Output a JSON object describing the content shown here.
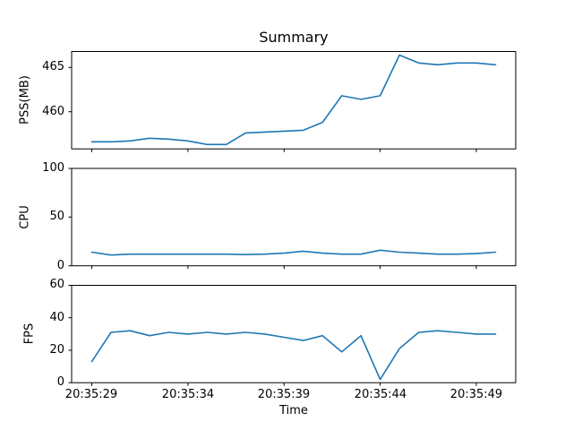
{
  "figure": {
    "title": "Summary",
    "xlabel": "Time",
    "xtick_labels": [
      "20:35:29",
      "20:35:34",
      "20:35:39",
      "20:35:44",
      "20:35:49"
    ],
    "background": "#ffffff",
    "line_color": "#1f77b4",
    "axes_color": "#000000"
  },
  "chart_data": [
    {
      "type": "line",
      "ylabel": "PSS(MB)",
      "ylim": [
        455.8,
        466.8
      ],
      "yticks": [
        460,
        465
      ],
      "grid": false,
      "legend": null,
      "line_color": "#1f77b4",
      "x_times": [
        "20:35:29",
        "20:35:30",
        "20:35:31",
        "20:35:32",
        "20:35:33",
        "20:35:34",
        "20:35:35",
        "20:35:36",
        "20:35:37",
        "20:35:38",
        "20:35:39",
        "20:35:40",
        "20:35:41",
        "20:35:42",
        "20:35:43",
        "20:35:44",
        "20:35:45",
        "20:35:46",
        "20:35:47",
        "20:35:48",
        "20:35:49",
        "20:35:50"
      ],
      "values": [
        456.6,
        456.6,
        456.7,
        457.0,
        456.9,
        456.7,
        456.3,
        456.3,
        457.6,
        457.7,
        457.8,
        457.9,
        458.8,
        461.8,
        461.4,
        461.8,
        466.4,
        465.5,
        465.3,
        465.5,
        465.5,
        465.3
      ]
    },
    {
      "type": "line",
      "ylabel": "CPU",
      "ylim": [
        0,
        100
      ],
      "yticks": [
        0,
        50,
        100
      ],
      "grid": false,
      "legend": null,
      "line_color": "#1f77b4",
      "x_times": [
        "20:35:29",
        "20:35:30",
        "20:35:31",
        "20:35:32",
        "20:35:33",
        "20:35:34",
        "20:35:35",
        "20:35:36",
        "20:35:37",
        "20:35:38",
        "20:35:39",
        "20:35:40",
        "20:35:41",
        "20:35:42",
        "20:35:43",
        "20:35:44",
        "20:35:45",
        "20:35:46",
        "20:35:47",
        "20:35:48",
        "20:35:49",
        "20:35:50"
      ],
      "values": [
        14,
        11,
        12,
        12,
        12,
        12,
        12,
        12,
        11.5,
        12,
        13,
        15,
        13,
        12,
        12,
        16,
        14,
        13,
        12,
        12,
        12.5,
        14
      ]
    },
    {
      "type": "line",
      "ylabel": "FPS",
      "ylim": [
        0,
        60
      ],
      "yticks": [
        0,
        20,
        40,
        60
      ],
      "grid": false,
      "legend": null,
      "line_color": "#1f77b4",
      "x_times": [
        "20:35:29",
        "20:35:30",
        "20:35:31",
        "20:35:32",
        "20:35:33",
        "20:35:34",
        "20:35:35",
        "20:35:36",
        "20:35:37",
        "20:35:38",
        "20:35:39",
        "20:35:40",
        "20:35:41",
        "20:35:42",
        "20:35:43",
        "20:35:44",
        "20:35:45",
        "20:35:46",
        "20:35:47",
        "20:35:48",
        "20:35:49",
        "20:35:50"
      ],
      "values": [
        13,
        31,
        32,
        29,
        31,
        30,
        31,
        30,
        31,
        30,
        28,
        26,
        29,
        19,
        29,
        2,
        21,
        31,
        32,
        31,
        30,
        30
      ]
    }
  ]
}
